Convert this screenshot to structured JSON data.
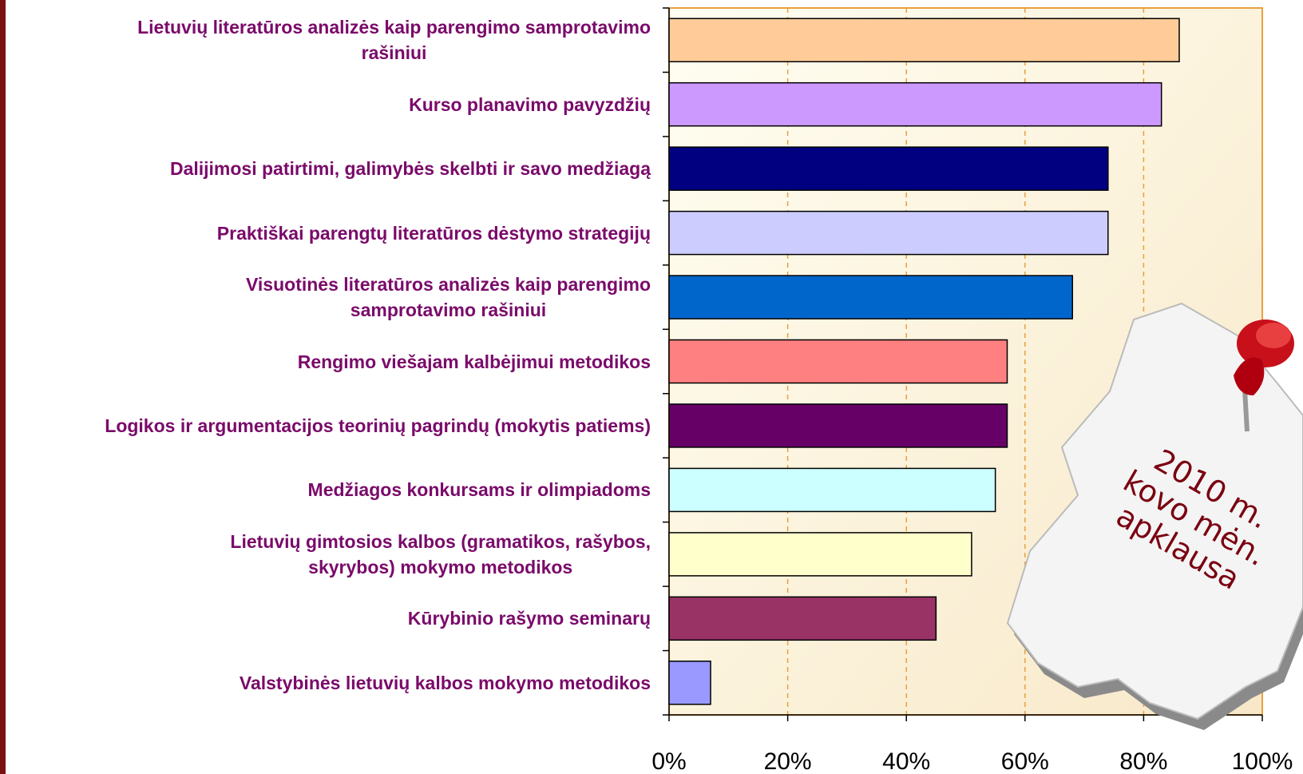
{
  "chart_data": {
    "type": "bar",
    "orientation": "horizontal",
    "categories": [
      "Lietuvių literatūros analizės kaip parengimo samprotavimo\nrašiniui",
      "Kurso planavimo pavyzdžių",
      "Dalijimosi patirtimi, galimybės skelbti ir savo medžiagą",
      "Praktiškai parengtų literatūros dėstymo strategijų",
      "Visuotinės literatūros analizės kaip parengimo\nsamprotavimo rašiniui",
      "Rengimo viešajam kalbėjimui  metodikos",
      "Logikos ir argumentacijos teorinių pagrindų (mokytis patiems)",
      "Medžiagos konkursams ir olimpiadoms",
      "Lietuvių gimtosios kalbos (gramatikos, rašybos,\nskyrybos) mokymo metodikos",
      "Kūrybinio rašymo seminarų",
      "Valstybinės lietuvių kalbos mokymo metodikos"
    ],
    "values": [
      86,
      83,
      74,
      74,
      68,
      57,
      57,
      55,
      51,
      45,
      7
    ],
    "colors": [
      "#ffcc99",
      "#cc99ff",
      "#000080",
      "#ccccff",
      "#0066cc",
      "#ff8080",
      "#660066",
      "#ccffff",
      "#ffffcc",
      "#993366",
      "#9999ff"
    ],
    "xlim": [
      0,
      100
    ],
    "xticks": [
      {
        "value": 0,
        "label": "0%"
      },
      {
        "value": 20,
        "label": "20%"
      },
      {
        "value": 40,
        "label": "40%"
      },
      {
        "value": 60,
        "label": "60%"
      },
      {
        "value": 80,
        "label": "80%"
      },
      {
        "value": 100,
        "label": "100%"
      }
    ],
    "grid": true,
    "note": [
      "2010 m.",
      "kovo mėn.",
      "apklausa"
    ]
  }
}
